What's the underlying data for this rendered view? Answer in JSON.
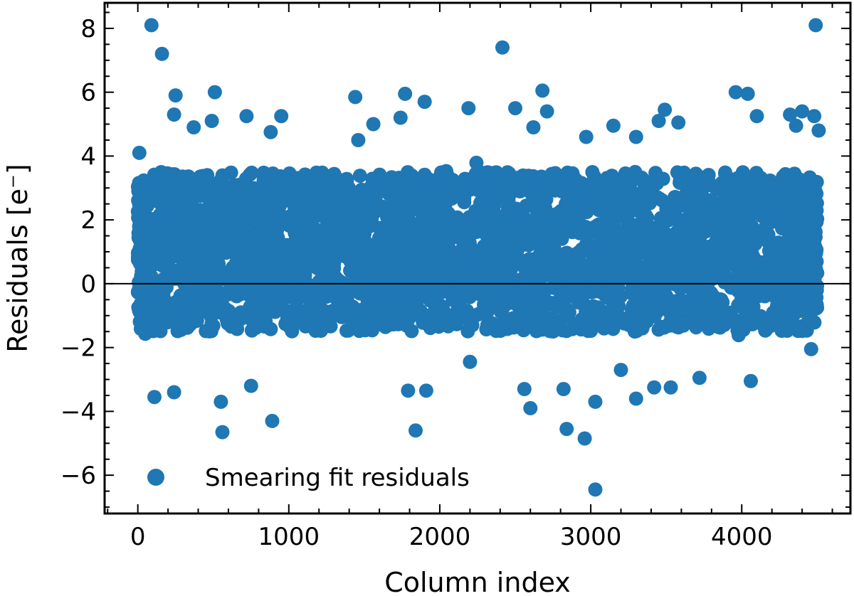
{
  "chart_data": {
    "type": "scatter",
    "title": "",
    "xlabel": "Column index",
    "ylabel": "Residuals [e⁻]",
    "xlim": [
      -220,
      4720
    ],
    "ylim": [
      -7.2,
      8.8
    ],
    "xticks": [
      0,
      1000,
      2000,
      3000,
      4000
    ],
    "xtick_labels": [
      "0",
      "1000",
      "2000",
      "3000",
      "4000"
    ],
    "yticks": [
      -6,
      -4,
      -2,
      0,
      2,
      4,
      6,
      8
    ],
    "ytick_labels": [
      "−6",
      "−4",
      "−2",
      "0",
      "2",
      "4",
      "6",
      "8"
    ],
    "grid": false,
    "reference_line": 0,
    "legend": {
      "position": "bottom-left",
      "entries": [
        "Smearing fit residuals"
      ]
    },
    "color": "#1f77b4",
    "series": [
      {
        "name": "Smearing fit residuals",
        "n_points": 4500,
        "x_range": [
          0,
          4500
        ],
        "dense_band": [
          -1.5,
          3.5
        ],
        "outliers": [
          {
            "x": 90,
            "y": 8.1
          },
          {
            "x": 160,
            "y": 7.2
          },
          {
            "x": 2415,
            "y": 7.4
          },
          {
            "x": 4490,
            "y": 8.1
          },
          {
            "x": 250,
            "y": 5.9
          },
          {
            "x": 510,
            "y": 6.0
          },
          {
            "x": 1440,
            "y": 5.85
          },
          {
            "x": 1770,
            "y": 5.95
          },
          {
            "x": 1900,
            "y": 5.7
          },
          {
            "x": 2680,
            "y": 6.05
          },
          {
            "x": 3960,
            "y": 6.0
          },
          {
            "x": 4040,
            "y": 5.95
          },
          {
            "x": 240,
            "y": 5.3
          },
          {
            "x": 490,
            "y": 5.1
          },
          {
            "x": 720,
            "y": 5.25
          },
          {
            "x": 950,
            "y": 5.25
          },
          {
            "x": 1560,
            "y": 5.0
          },
          {
            "x": 1740,
            "y": 5.2
          },
          {
            "x": 2190,
            "y": 5.5
          },
          {
            "x": 2500,
            "y": 5.5
          },
          {
            "x": 2710,
            "y": 5.4
          },
          {
            "x": 3150,
            "y": 4.95
          },
          {
            "x": 3450,
            "y": 5.1
          },
          {
            "x": 3490,
            "y": 5.45
          },
          {
            "x": 3580,
            "y": 5.05
          },
          {
            "x": 4100,
            "y": 5.25
          },
          {
            "x": 4320,
            "y": 5.3
          },
          {
            "x": 4400,
            "y": 5.4
          },
          {
            "x": 4480,
            "y": 5.25
          },
          {
            "x": 4510,
            "y": 4.8
          },
          {
            "x": 10,
            "y": 4.1
          },
          {
            "x": 370,
            "y": 4.9
          },
          {
            "x": 880,
            "y": 4.75
          },
          {
            "x": 1460,
            "y": 4.5
          },
          {
            "x": 2620,
            "y": 4.9
          },
          {
            "x": 2970,
            "y": 4.6
          },
          {
            "x": 3300,
            "y": 4.6
          },
          {
            "x": 4360,
            "y": 4.95
          },
          {
            "x": 890,
            "y": -4.3
          },
          {
            "x": 560,
            "y": -4.65
          },
          {
            "x": 1840,
            "y": -4.6
          },
          {
            "x": 2840,
            "y": -4.55
          },
          {
            "x": 2960,
            "y": -4.85
          },
          {
            "x": 3030,
            "y": -6.45
          },
          {
            "x": 3030,
            "y": -3.7
          },
          {
            "x": 2600,
            "y": -3.9
          },
          {
            "x": 110,
            "y": -3.55
          },
          {
            "x": 550,
            "y": -3.7
          },
          {
            "x": 1790,
            "y": -3.35
          },
          {
            "x": 3300,
            "y": -3.6
          },
          {
            "x": 3420,
            "y": -3.25
          },
          {
            "x": 3530,
            "y": -3.25
          },
          {
            "x": 4060,
            "y": -3.05
          },
          {
            "x": 3720,
            "y": -2.95
          },
          {
            "x": 240,
            "y": -3.4
          },
          {
            "x": 750,
            "y": -3.2
          },
          {
            "x": 1910,
            "y": -3.35
          },
          {
            "x": 2560,
            "y": -3.3
          },
          {
            "x": 2820,
            "y": -3.3
          },
          {
            "x": 2200,
            "y": -2.45
          },
          {
            "x": 3200,
            "y": -2.7
          },
          {
            "x": 4460,
            "y": -2.05
          }
        ]
      }
    ]
  }
}
